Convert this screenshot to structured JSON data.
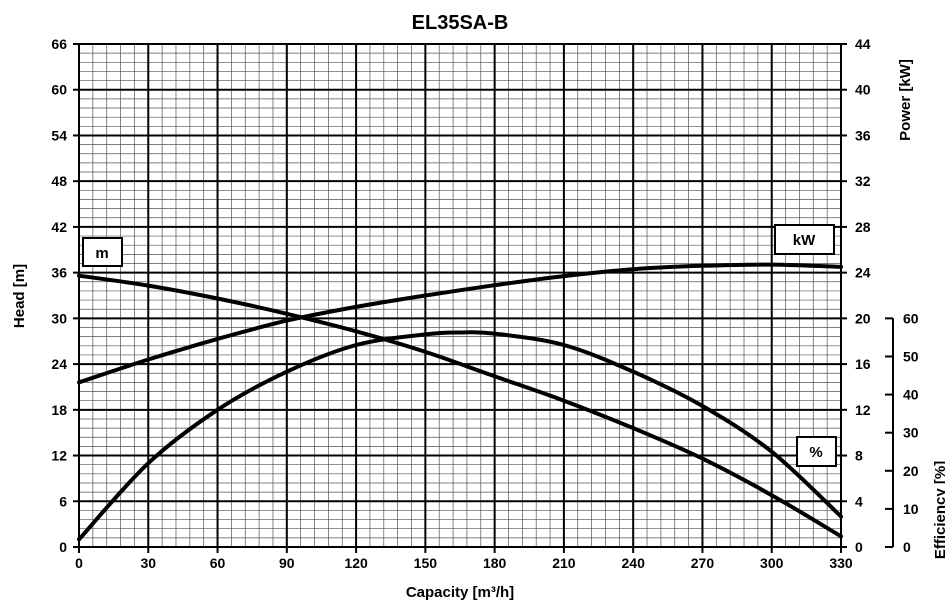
{
  "chart_data": {
    "type": "line",
    "title": "EL35SA-B",
    "xlabel": "Capacity [m³/h]",
    "ylabel_left": "Head [m]",
    "ylabel_right": "Power [kW]",
    "ylabel_eff": "Efficiency [%]",
    "xlim": [
      0,
      330
    ],
    "ylim_head": [
      0,
      66
    ],
    "ylim_power": [
      0,
      44
    ],
    "ylim_eff": [
      0,
      60
    ],
    "x_ticks": [
      "0",
      "30",
      "60",
      "90",
      "120",
      "150",
      "180",
      "210",
      "240",
      "270",
      "300",
      "330"
    ],
    "head_ticks": [
      "0",
      "6",
      "12",
      "18",
      "24",
      "30",
      "36",
      "42",
      "48",
      "54",
      "60",
      "66"
    ],
    "power_ticks": [
      "0",
      "4",
      "8",
      "12",
      "16",
      "20",
      "24",
      "28",
      "32",
      "36",
      "40",
      "44"
    ],
    "eff_ticks": [
      "0",
      "10",
      "20",
      "30",
      "40",
      "50",
      "60"
    ],
    "grid": true,
    "series": [
      {
        "name": "m",
        "axis": "head",
        "x": [
          0,
          30,
          60,
          90,
          120,
          150,
          180,
          210,
          240,
          270,
          300,
          330
        ],
        "y": [
          35.6,
          34.3,
          32.6,
          30.6,
          28.3,
          25.6,
          22.4,
          19.2,
          15.6,
          11.6,
          6.8,
          1.4
        ]
      },
      {
        "name": "kW",
        "axis": "power",
        "x": [
          0,
          30,
          60,
          90,
          120,
          150,
          180,
          210,
          240,
          270,
          300,
          330
        ],
        "y": [
          14.4,
          16.4,
          18.2,
          19.8,
          21.0,
          22.0,
          22.9,
          23.7,
          24.3,
          24.6,
          24.7,
          24.5
        ]
      },
      {
        "name": "%",
        "axis": "efficiency",
        "x": [
          0,
          30,
          60,
          90,
          120,
          150,
          165,
          180,
          210,
          240,
          270,
          300,
          330
        ],
        "y": [
          2,
          22,
          36,
          46,
          53,
          55.8,
          56.3,
          56,
          53,
          46,
          37,
          25,
          8
        ]
      }
    ],
    "legend": {
      "head_label": "m",
      "power_label": "kW",
      "eff_label": "%"
    }
  }
}
